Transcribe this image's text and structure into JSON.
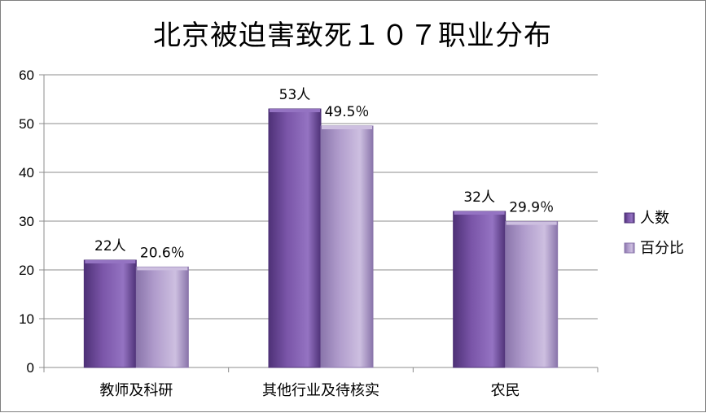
{
  "chart_data": {
    "type": "bar",
    "title": "北京被迫害致死１０７职业分布",
    "categories": [
      "教师及科研",
      "其他行业及待核实",
      "农民"
    ],
    "series": [
      {
        "name": "人数",
        "values": [
          22,
          53,
          32
        ],
        "labels": [
          "22人",
          "53人",
          "32人"
        ],
        "color": "#7a55a8",
        "color_dark": "#4e3177",
        "color_light": "#9473c2"
      },
      {
        "name": "百分比",
        "values": [
          20.6,
          49.5,
          29.9
        ],
        "labels": [
          "20.6％",
          "49.5％",
          "29.9％"
        ],
        "color": "#b09ccc",
        "color_dark": "#8a75ab",
        "color_light": "#cdbfe0"
      }
    ],
    "yticks": [
      "0",
      "10",
      "20",
      "30",
      "40",
      "50",
      "60"
    ],
    "ylim": [
      0,
      60
    ],
    "grid": true,
    "legend_position": "right"
  }
}
